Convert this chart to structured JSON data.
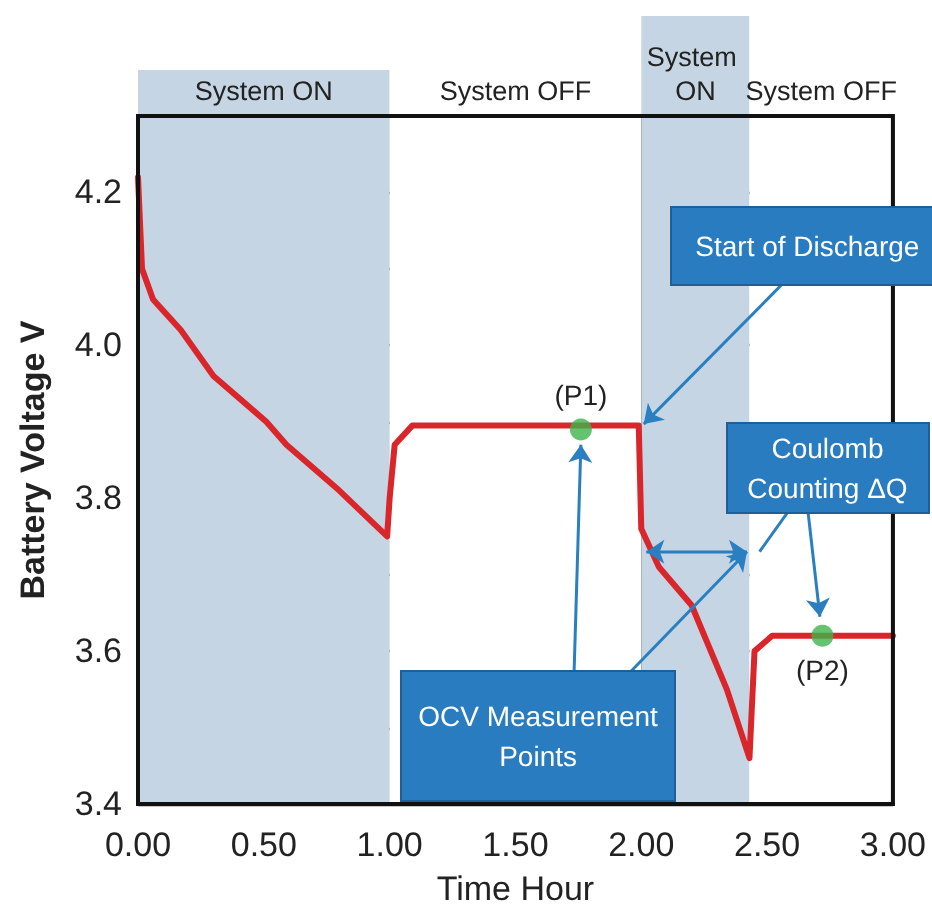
{
  "chart_data": {
    "type": "line",
    "xlabel": "Time Hour",
    "ylabel": "Battery Voltage V",
    "xlim": [
      0,
      3
    ],
    "ylim": [
      3.4,
      4.3
    ],
    "xticks": [
      {
        "value": 0,
        "label": "0.00"
      },
      {
        "value": 0.5,
        "label": "0.50"
      },
      {
        "value": 1,
        "label": "1.00"
      },
      {
        "value": 1.5,
        "label": "1.50"
      },
      {
        "value": 2,
        "label": "2.00"
      },
      {
        "value": 2.5,
        "label": "2.50"
      },
      {
        "value": 3,
        "label": "3.00"
      }
    ],
    "yticks": [
      3.4,
      {
        "value": 3.5,
        "label": null
      },
      3.6,
      {
        "value": 3.7,
        "label": null
      },
      3.8,
      {
        "value": 3.9,
        "label": null
      },
      {
        "value": 4,
        "label": "4.0"
      },
      {
        "value": 4.1,
        "label": null
      },
      4.2,
      {
        "value": 4.3,
        "label": null
      }
    ],
    "grid": true,
    "series": [
      {
        "color": "#d9262a",
        "marker": "none",
        "line_style": "solid",
        "x": [
          0,
          0.016,
          0.06,
          0.17,
          0.3,
          0.51,
          0.59,
          0.8,
          0.99,
          1.0,
          1.02,
          1.09,
          1.5,
          1.99,
          2.0,
          2.07,
          2.2,
          2.34,
          2.43,
          2.45,
          2.52,
          3.0
        ],
        "values": [
          4.22,
          4.1,
          4.06,
          4.02,
          3.96,
          3.9,
          3.87,
          3.81,
          3.75,
          3.8,
          3.87,
          3.895,
          3.895,
          3.895,
          3.76,
          3.71,
          3.66,
          3.55,
          3.46,
          3.6,
          3.62,
          3.62
        ]
      },
      {
        "type": "scatter",
        "color": "#3cb44b",
        "marker": "circle",
        "x": [
          1.76,
          2.72
        ],
        "values": [
          3.89,
          3.62
        ]
      }
    ],
    "bands": [
      {
        "axis": "x",
        "from": 0,
        "to": 1,
        "label": "System ON",
        "color": "#c5d5e4"
      },
      {
        "axis": "x",
        "from": 1,
        "to": 2,
        "label": "System OFF",
        "color": "#ffffff"
      },
      {
        "axis": "x",
        "from": 2,
        "to": 2.43,
        "label": "System ON",
        "color": "#c5d5e4"
      },
      {
        "axis": "x",
        "from": 2.43,
        "to": 3,
        "label": "System OFF",
        "color": "#ffffff"
      }
    ],
    "annotations": [
      {
        "text": "(P1)",
        "x": 1.76,
        "y": 3.89
      },
      {
        "text": "(P2)",
        "x": 2.72,
        "y": 3.62
      },
      {
        "text": "Start of Discharge",
        "x": 2.0,
        "y": 3.895
      },
      {
        "text": "Coulomb Counting ΔQ",
        "x": 2.43,
        "y": 3.73
      },
      {
        "text": "OCV Measurement Points",
        "x": 1.76,
        "y": 3.89
      }
    ]
  }
}
